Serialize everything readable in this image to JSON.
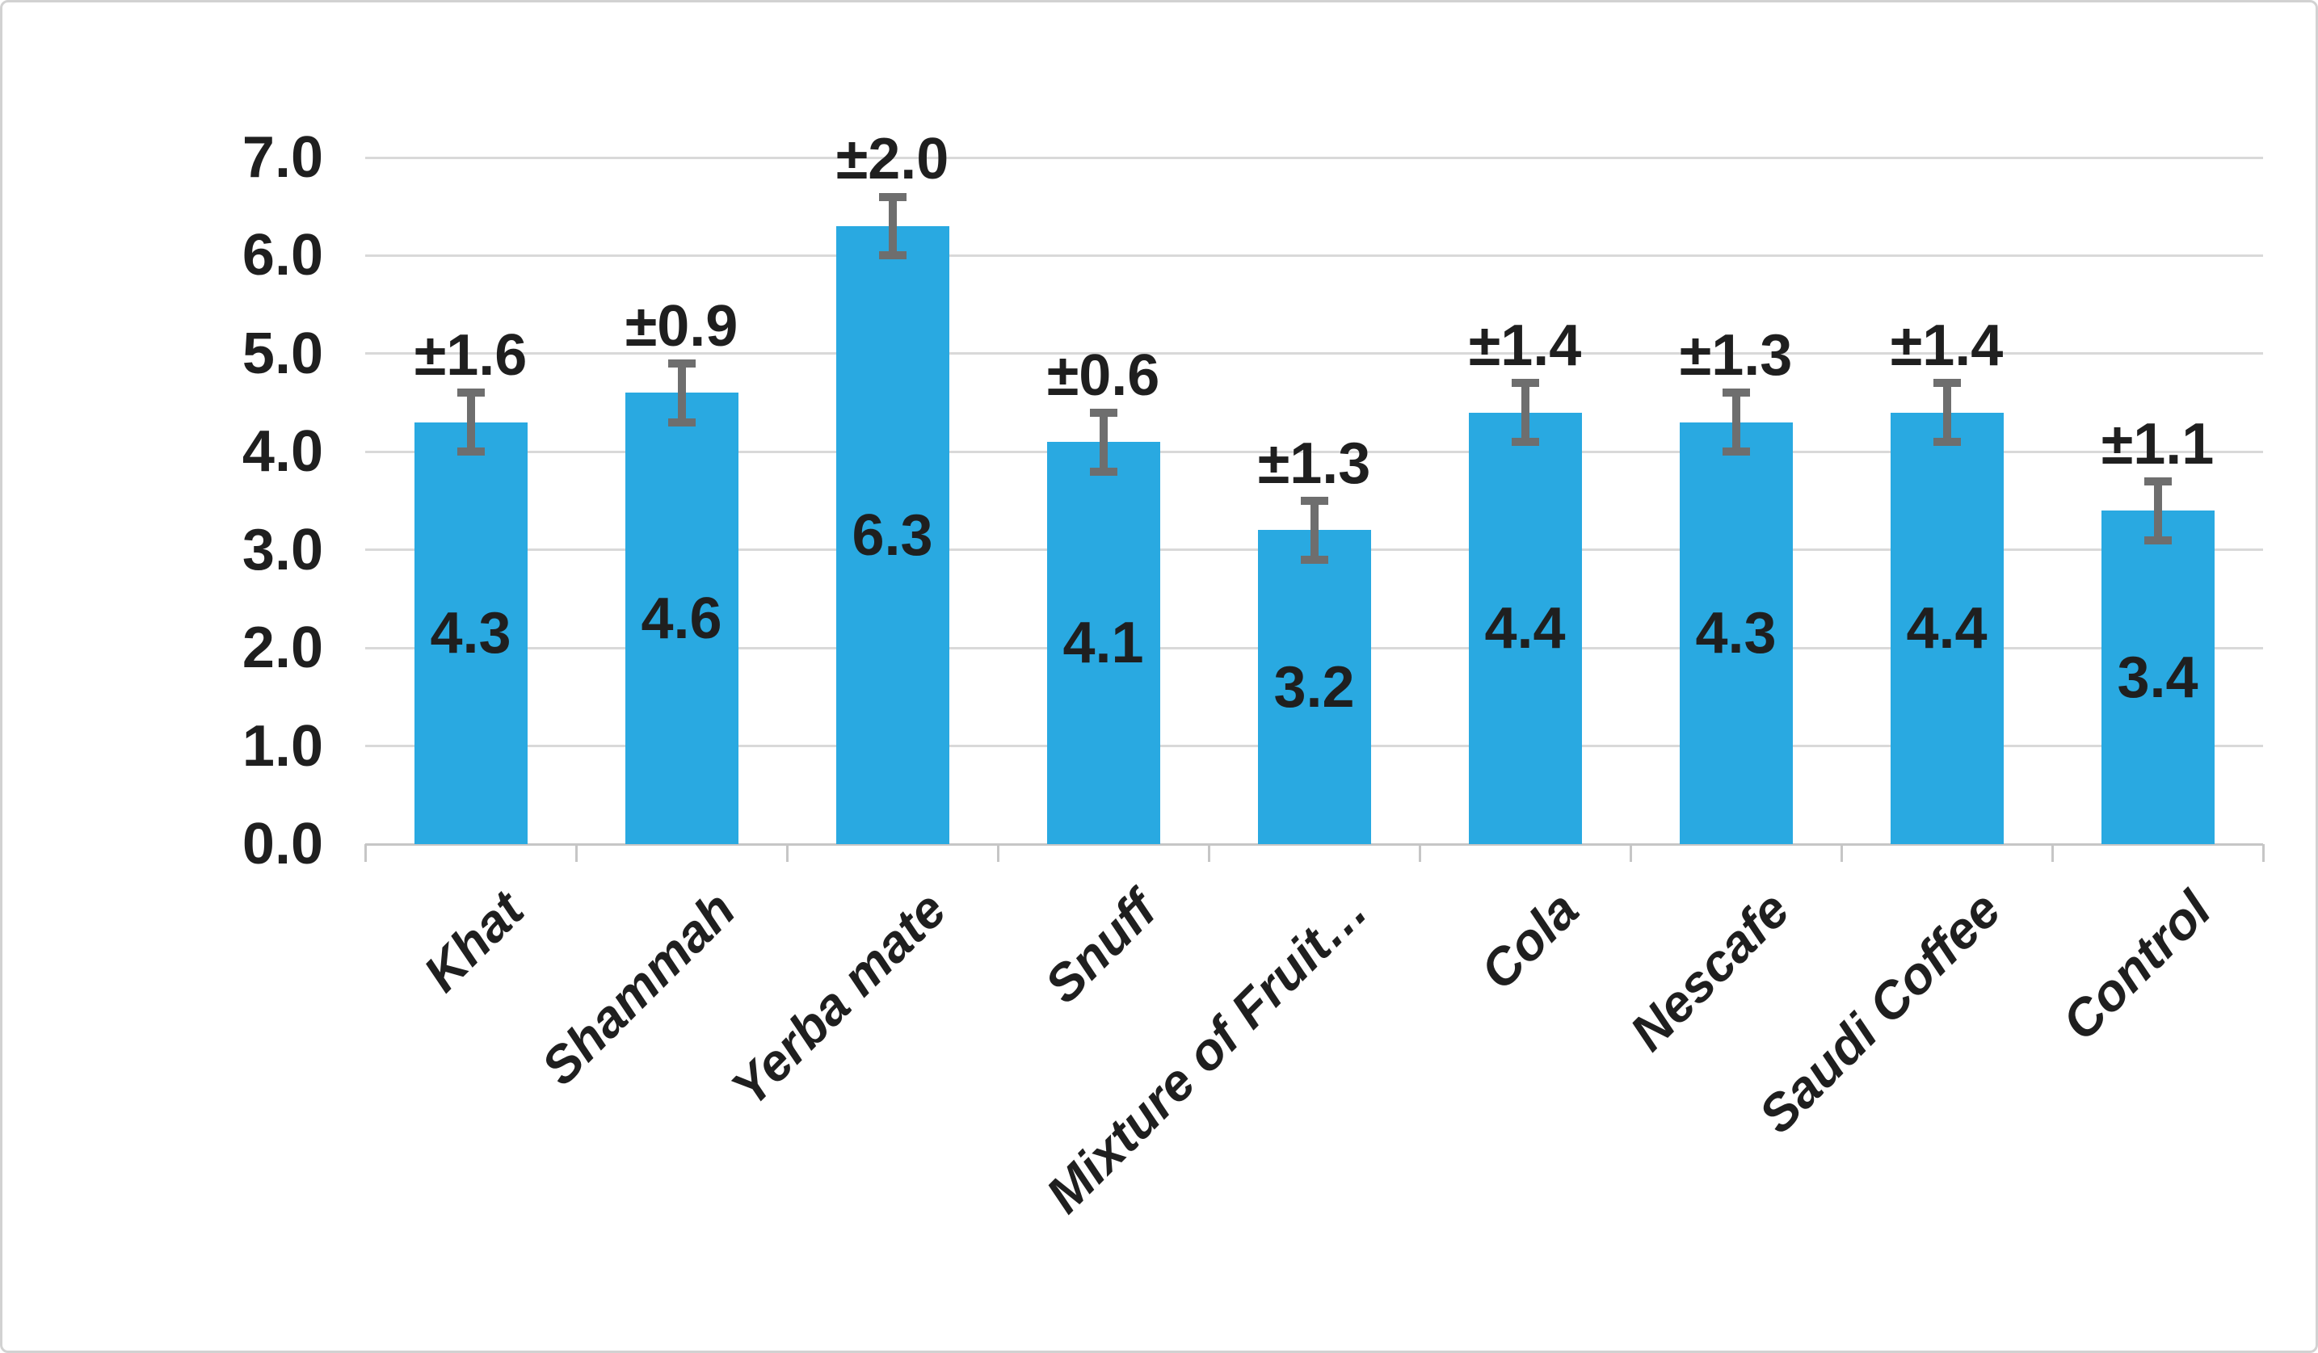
{
  "chart_data": {
    "type": "bar",
    "title": "",
    "xlabel": "",
    "ylabel": "",
    "categories": [
      "Khat",
      "Shammah",
      "Yerba mate",
      "Snuff",
      "Mixture of Fruit…",
      "Cola",
      "Nescafe",
      "Saudi Coffee",
      "Control"
    ],
    "values": [
      4.3,
      4.6,
      6.3,
      4.1,
      3.2,
      4.4,
      4.3,
      4.4,
      3.4
    ],
    "bar_value_labels": [
      "4.3",
      "4.6",
      "6.3",
      "4.1",
      "3.2",
      "4.4",
      "4.3",
      "4.4",
      "3.4"
    ],
    "error_labels": [
      "±1.6",
      "±0.9",
      "±2.0",
      "±0.6",
      "±1.3",
      "±1.4",
      "±1.3",
      "±1.4",
      "±1.1"
    ],
    "error_values": [
      1.6,
      0.9,
      2.0,
      0.6,
      1.3,
      1.4,
      1.3,
      1.4,
      1.1
    ],
    "whisker_drawn_halflength": 0.3,
    "y_tick_labels": [
      "0.0",
      "1.0",
      "2.0",
      "3.0",
      "4.0",
      "5.0",
      "6.0",
      "7.0"
    ],
    "ylim": [
      0,
      7
    ],
    "grid": true,
    "legend_position": "none",
    "colors": {
      "bar": "#29A9E1",
      "error_bar": "#6E6E6E",
      "gridline": "#D9D9D9",
      "axis": "#C6C6C6",
      "text": "#1F1F1F"
    }
  }
}
